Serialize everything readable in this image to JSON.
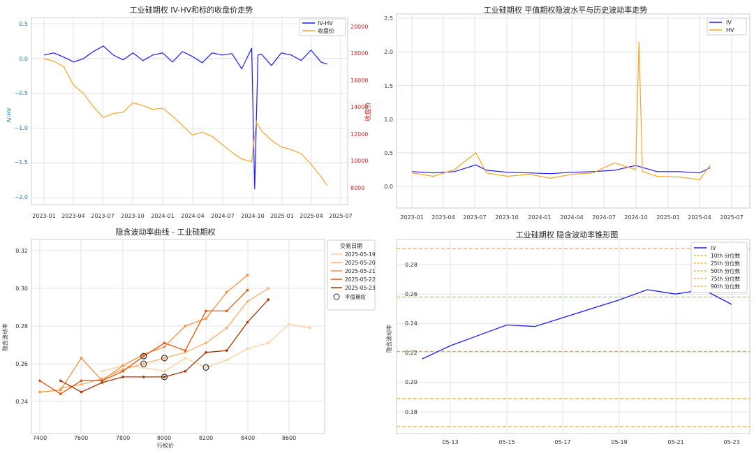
{
  "charts": {
    "c1": {
      "type": "line",
      "title": "工业硅期权 IV-HV和标的收盘价走势",
      "ylabel": "IV-HV",
      "y2label": "收盘价",
      "x_ticks": [
        "2023-01",
        "2023-04",
        "2023-07",
        "2023-10",
        "2024-01",
        "2024-04",
        "2024-07",
        "2024-10",
        "2025-01",
        "2025-04",
        "2025-07"
      ],
      "y_ticks": [
        "0.5",
        "0.0",
        "−0.5",
        "−1.0",
        "−1.5",
        "−2.0"
      ],
      "y2_ticks": [
        "8000",
        "10000",
        "12000",
        "14000",
        "16000",
        "18000",
        "20000"
      ],
      "legend": [
        "IV-HV",
        "收盘价"
      ]
    },
    "c2": {
      "type": "line",
      "title": "工业硅期权 平值期权隐波水平与历史波动率走势",
      "x_ticks": [
        "2023-01",
        "2023-04",
        "2023-07",
        "2023-10",
        "2024-01",
        "2024-04",
        "2024-07",
        "2024-10",
        "2025-01",
        "2025-04",
        "2025-07"
      ],
      "y_ticks": [
        "0.0",
        "0.5",
        "1.0",
        "1.5",
        "2.0",
        "2.5"
      ],
      "legend": [
        "IV",
        "HV"
      ]
    },
    "c3": {
      "type": "line",
      "title": "隐含波动率曲线 - 工业硅期权",
      "xlabel": "行权价",
      "ylabel": "隐含波动率",
      "x_ticks": [
        "7400",
        "7600",
        "7800",
        "8000",
        "8200",
        "8400",
        "8600"
      ],
      "y_ticks": [
        "0.24",
        "0.26",
        "0.28",
        "0.30",
        "0.32"
      ],
      "legend_title": "交易日期",
      "legend": [
        "2025-05-19",
        "2025-05-20",
        "2025-05-21",
        "2025-05-22",
        "2025-05-23",
        "平值期权"
      ]
    },
    "c4": {
      "type": "line",
      "title": "工业硅期权 隐含波动率锥形图",
      "ylabel": "隐含波动率",
      "x_ticks": [
        "05-13",
        "05-15",
        "05-17",
        "05-19",
        "05-21",
        "05-23"
      ],
      "y_ticks": [
        "0.18",
        "0.20",
        "0.22",
        "0.24",
        "0.26",
        "0.28"
      ],
      "legend": [
        "IV",
        "10th 分位数",
        "25th 分位数",
        "50th 分位数",
        "75th 分位数",
        "90th 分位数"
      ]
    }
  },
  "chart_data": [
    {
      "type": "line",
      "title": "工业硅期权 IV-HV和标的收盘价走势",
      "ylabel": "IV-HV",
      "y2label": "收盘价",
      "ylim": [
        -2.0,
        0.55
      ],
      "y2lim": [
        7500,
        20500
      ],
      "xlim": [
        "2023-01",
        "2025-07"
      ],
      "series": [
        {
          "name": "IV-HV",
          "axis": "left",
          "color": "#1a1aff",
          "x": [
            "2023-01",
            "2023-02",
            "2023-03",
            "2023-04",
            "2023-05",
            "2023-06",
            "2023-07",
            "2023-08",
            "2023-09",
            "2023-10",
            "2023-11",
            "2023-12",
            "2024-01",
            "2024-02",
            "2024-03",
            "2024-04",
            "2024-05",
            "2024-06",
            "2024-07",
            "2024-08",
            "2024-09",
            "2024-10",
            "2024-10-10",
            "2024-10-20",
            "2024-11",
            "2024-12",
            "2025-01",
            "2025-02",
            "2025-03",
            "2025-04",
            "2025-05",
            "2025-05-20"
          ],
          "y": [
            0.05,
            0.08,
            0.02,
            -0.05,
            0.0,
            0.1,
            0.18,
            0.05,
            -0.02,
            0.08,
            -0.03,
            0.05,
            0.08,
            -0.05,
            0.1,
            0.03,
            -0.06,
            0.08,
            0.05,
            0.07,
            -0.15,
            0.15,
            -1.88,
            0.05,
            0.06,
            -0.1,
            0.08,
            0.05,
            -0.03,
            0.12,
            -0.05,
            -0.08
          ]
        },
        {
          "name": "收盘价",
          "axis": "right",
          "color": "#f5a623",
          "x": [
            "2023-01",
            "2023-02",
            "2023-03",
            "2023-04",
            "2023-05",
            "2023-06",
            "2023-07",
            "2023-08",
            "2023-09",
            "2023-10",
            "2023-11",
            "2023-12",
            "2024-01",
            "2024-02",
            "2024-03",
            "2024-04",
            "2024-05",
            "2024-06",
            "2024-07",
            "2024-08",
            "2024-09",
            "2024-10",
            "2024-10-15",
            "2024-11",
            "2024-12",
            "2025-01",
            "2025-02",
            "2025-03",
            "2025-04",
            "2025-05",
            "2025-05-20"
          ],
          "y": [
            17600,
            17400,
            17000,
            15600,
            15000,
            14000,
            13200,
            13500,
            13600,
            14300,
            14100,
            13800,
            13900,
            13300,
            12600,
            11900,
            12100,
            11800,
            11200,
            10600,
            10100,
            9900,
            12900,
            12200,
            11500,
            11000,
            10800,
            10500,
            9700,
            8800,
            8100
          ]
        }
      ]
    },
    {
      "type": "line",
      "title": "工业硅期权 平值期权隐波水平与历史波动率走势",
      "ylim": [
        -0.35,
        2.55
      ],
      "xlim": [
        "2023-01",
        "2025-07"
      ],
      "series": [
        {
          "name": "IV",
          "color": "#1a1aff",
          "x": [
            "2023-01",
            "2023-03",
            "2023-05",
            "2023-07",
            "2023-08",
            "2023-10",
            "2023-12",
            "2024-02",
            "2024-04",
            "2024-06",
            "2024-08",
            "2024-10",
            "2024-12",
            "2025-02",
            "2025-04",
            "2025-05"
          ],
          "y": [
            0.22,
            0.2,
            0.22,
            0.32,
            0.24,
            0.21,
            0.2,
            0.19,
            0.21,
            0.22,
            0.24,
            0.31,
            0.22,
            0.22,
            0.2,
            0.28
          ]
        },
        {
          "name": "HV",
          "color": "#f5a623",
          "x": [
            "2023-01",
            "2023-03",
            "2023-05",
            "2023-07",
            "2023-08",
            "2023-10",
            "2023-12",
            "2024-02",
            "2024-04",
            "2024-06",
            "2024-08",
            "2024-10",
            "2024-10-10",
            "2024-10-20",
            "2024-12",
            "2025-02",
            "2025-04",
            "2025-05"
          ],
          "y": [
            0.2,
            0.15,
            0.25,
            0.5,
            0.2,
            0.15,
            0.18,
            0.12,
            0.18,
            0.2,
            0.35,
            0.25,
            2.15,
            0.22,
            0.15,
            0.14,
            0.1,
            0.32
          ]
        }
      ]
    },
    {
      "type": "line",
      "title": "隐含波动率曲线 - 工业硅期权",
      "xlabel": "行权价",
      "ylabel": "隐含波动率",
      "xlim": [
        7360,
        8780
      ],
      "ylim": [
        0.225,
        0.327
      ],
      "series": [
        {
          "name": "2025-05-19",
          "color": "#fdd0a2",
          "x": [
            7700,
            7800,
            7900,
            8000,
            8100,
            8200,
            8300,
            8400,
            8500,
            8600,
            8700
          ],
          "y": [
            0.256,
            0.259,
            0.258,
            0.256,
            0.263,
            0.258,
            0.262,
            0.268,
            0.271,
            0.281,
            0.279
          ]
        },
        {
          "name": "2025-05-20",
          "color": "#fdae6b",
          "x": [
            7500,
            7600,
            7700,
            7800,
            7900,
            8000,
            8100,
            8200,
            8300,
            8400,
            8500
          ],
          "y": [
            0.247,
            0.249,
            0.252,
            0.257,
            0.26,
            0.263,
            0.266,
            0.271,
            0.279,
            0.293,
            0.3
          ]
        },
        {
          "name": "2025-05-21",
          "color": "#fd8d3c",
          "x": [
            7400,
            7500,
            7600,
            7700,
            7800,
            7900,
            8000,
            8100,
            8200,
            8300,
            8400
          ],
          "y": [
            0.245,
            0.246,
            0.263,
            0.251,
            0.259,
            0.265,
            0.269,
            0.28,
            0.284,
            0.298,
            0.307
          ]
        },
        {
          "name": "2025-05-22",
          "color": "#e6550d",
          "x": [
            7400,
            7500,
            7600,
            7700,
            7800,
            7900,
            8000,
            8100,
            8200,
            8300,
            8400
          ],
          "y": [
            0.251,
            0.244,
            0.251,
            0.251,
            0.256,
            0.264,
            0.271,
            0.267,
            0.288,
            0.288,
            0.299
          ]
        },
        {
          "name": "2025-05-23",
          "color": "#a63603",
          "x": [
            7500,
            7600,
            7700,
            7800,
            7900,
            8000,
            8100,
            8200,
            8300,
            8400,
            8500
          ],
          "y": [
            0.251,
            0.245,
            0.25,
            0.253,
            0.253,
            0.253,
            0.256,
            0.266,
            0.267,
            0.282,
            0.294
          ]
        },
        {
          "name": "平值期权",
          "type": "marker",
          "x": [
            7900,
            7900,
            8000,
            8000,
            8200
          ],
          "y": [
            0.264,
            0.26,
            0.263,
            0.253,
            0.258
          ]
        }
      ]
    },
    {
      "type": "line",
      "title": "工业硅期权 隐含波动率锥形图",
      "ylabel": "隐含波动率",
      "ylim": [
        0.162,
        0.296
      ],
      "x": [
        "05-12",
        "05-13",
        "05-14",
        "05-15",
        "05-16",
        "05-17",
        "05-18",
        "05-19",
        "05-20",
        "05-21",
        "05-22",
        "05-23"
      ],
      "series": [
        {
          "name": "IV",
          "color": "#1a1aff",
          "values": [
            0.216,
            0.225,
            0.232,
            0.239,
            0.238,
            0.244,
            0.25,
            0.256,
            0.263,
            0.26,
            0.263,
            0.253
          ]
        }
      ],
      "hlines": [
        {
          "name": "10th 分位数",
          "value": 0.17
        },
        {
          "name": "25th 分位数",
          "value": 0.189
        },
        {
          "name": "50th 分位数",
          "value": 0.221
        },
        {
          "name": "75th 分位数",
          "value": 0.258
        },
        {
          "name": "90th 分位数",
          "value": 0.291
        }
      ]
    }
  ]
}
